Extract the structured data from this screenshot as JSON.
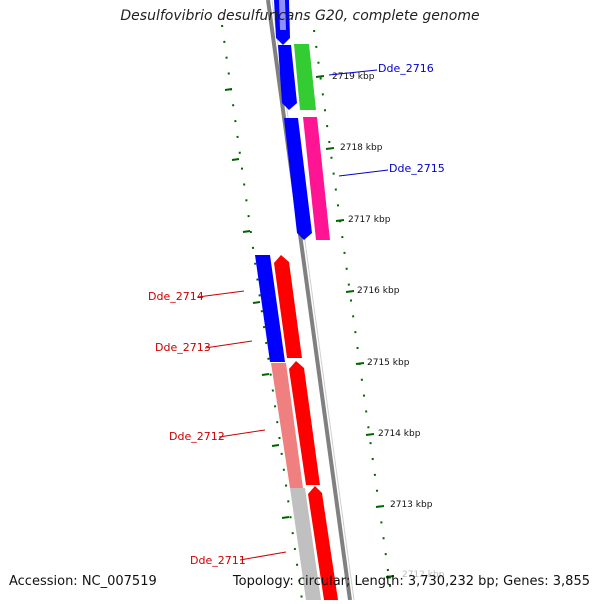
{
  "title": "Desulfovibrio desulfuricans G20, complete genome",
  "accession": "Accession: NC_007519",
  "topology": "Topology: circular; Length: 3,730,232 bp; Genes: 3,855",
  "colors": {
    "forward_cds": "#0000ff",
    "reverse_cds": "#ff0000",
    "rna": "#33cc33",
    "other": "#ff1493",
    "pseudo_pink": "#f08080",
    "pseudo_grey": "#c0c0c0",
    "backbone": "#808080",
    "ticks": "#006400",
    "label_blue": "#0000cc",
    "label_red": "#cc0000"
  },
  "ticks": [
    {
      "label": "2719 kbp"
    },
    {
      "label": "2718 kbp"
    },
    {
      "label": "2717 kbp"
    },
    {
      "label": "2716 kbp"
    },
    {
      "label": "2715 kbp"
    },
    {
      "label": "2714 kbp"
    },
    {
      "label": "2713 kbp"
    },
    {
      "label": "2712 kbp"
    }
  ],
  "genes": [
    {
      "name": "Dde_2716",
      "strand": "forward"
    },
    {
      "name": "Dde_2715",
      "strand": "forward"
    },
    {
      "name": "Dde_2714",
      "strand": "reverse"
    },
    {
      "name": "Dde_2713",
      "strand": "reverse"
    },
    {
      "name": "Dde_2712",
      "strand": "reverse"
    },
    {
      "name": "Dde_2711",
      "strand": "reverse"
    }
  ]
}
